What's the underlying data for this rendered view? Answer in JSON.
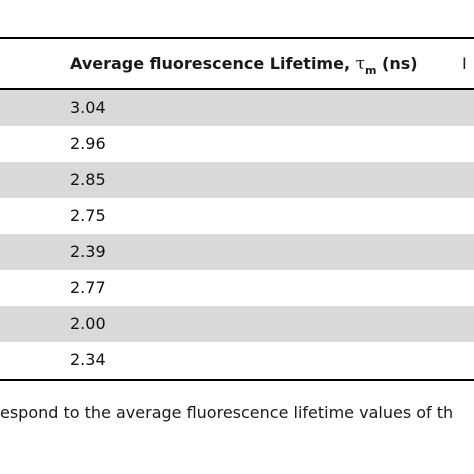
{
  "table": {
    "header": {
      "label": "Average fluorescence Lifetime, ",
      "tau": "τ",
      "tau_sub": "m",
      "unit": " (ns)",
      "next_col_fragment": "I"
    },
    "rows": [
      {
        "value": "3.04",
        "shaded": true
      },
      {
        "value": "2.96",
        "shaded": false
      },
      {
        "value": "2.85",
        "shaded": true
      },
      {
        "value": "2.75",
        "shaded": false
      },
      {
        "value": "2.39",
        "shaded": true
      },
      {
        "value": "2.77",
        "shaded": false
      },
      {
        "value": "2.00",
        "shaded": true
      },
      {
        "value": "2.34",
        "shaded": false
      }
    ]
  },
  "footnote": "espond to the average fluorescence lifetime values of th",
  "colors": {
    "shade": "#d9d9d9",
    "rule": "#000000",
    "text": "#1a1a1a"
  }
}
